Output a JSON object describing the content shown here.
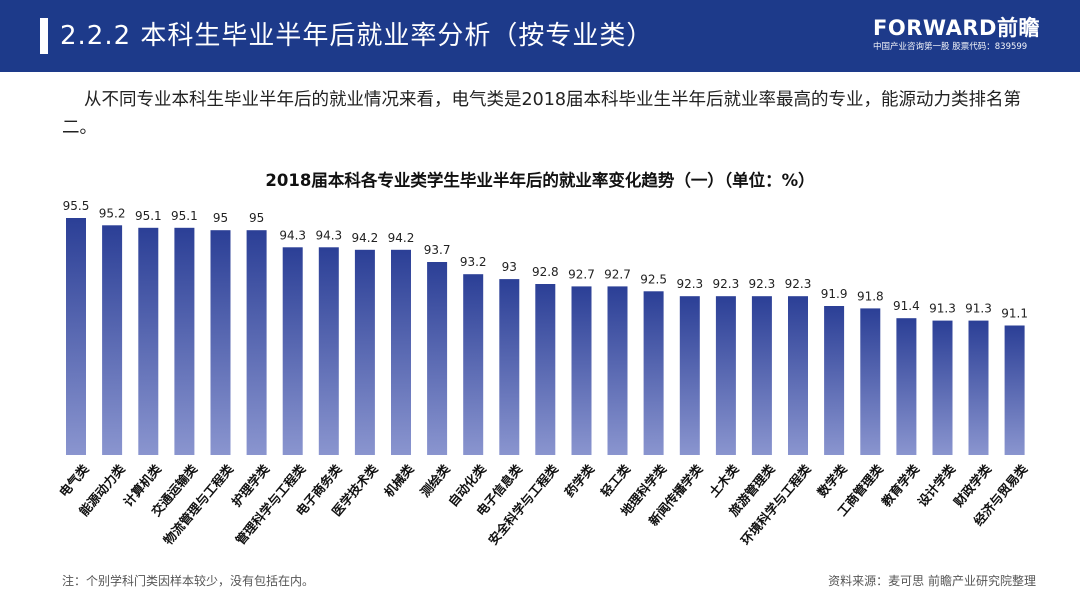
{
  "header": {
    "title": "2.2.2 本科生毕业半年后就业率分析（按专业类）",
    "brand_logo": "FORWARD前瞻",
    "brand_sub": "中国产业咨询第一股 股票代码：839599",
    "bg_color": "#1d3a8a"
  },
  "intro": "从不同专业本科生毕业半年后的就业情况来看，电气类是2018届本科毕业生半年后就业率最高的专业，能源动力类排名第二。",
  "chart_data": {
    "type": "bar",
    "title": "2018届本科各专业类学生毕业半年后的就业率变化趋势（一）（单位：%）",
    "categories": [
      "电气类",
      "能源动力类",
      "计算机类",
      "交通运输类",
      "物流管理与工程类",
      "护理学类",
      "管理科学与工程类",
      "电子商务类",
      "医学技术类",
      "机械类",
      "测绘类",
      "自动化类",
      "电子信息类",
      "安全科学与工程类",
      "药学类",
      "轻工类",
      "地理科学类",
      "新闻传播学类",
      "土木类",
      "旅游管理类",
      "环境科学与工程类",
      "数学类",
      "工商管理类",
      "教育学类",
      "设计学类",
      "财政学类",
      "经济与贸易类"
    ],
    "values": [
      95.5,
      95.2,
      95.1,
      95.1,
      95,
      95,
      94.3,
      94.3,
      94.2,
      94.2,
      93.7,
      93.2,
      93,
      92.8,
      92.7,
      92.7,
      92.5,
      92.3,
      92.3,
      92.3,
      92.3,
      91.9,
      91.8,
      91.4,
      91.3,
      91.3,
      91.1
    ],
    "labels": [
      "95.5",
      "95.2",
      "95.1",
      "95.1",
      "95",
      "95",
      "94.3",
      "94.3",
      "94.2",
      "94.2",
      "93.7",
      "93.2",
      "93",
      "92.8",
      "92.7",
      "92.7",
      "92.5",
      "92.3",
      "92.3",
      "92.3",
      "92.3",
      "91.9",
      "91.8",
      "91.4",
      "91.3",
      "91.3",
      "91.1"
    ],
    "ylim": [
      85.8,
      95.8
    ],
    "bar_color_top": "#2b3f96",
    "bar_color_bottom": "#8a95cf",
    "grid": false,
    "legend": false
  },
  "footnote": "注：个别学科门类因样本较少，没有包括在内。",
  "source": "资料来源：麦可思 前瞻产业研究院整理"
}
